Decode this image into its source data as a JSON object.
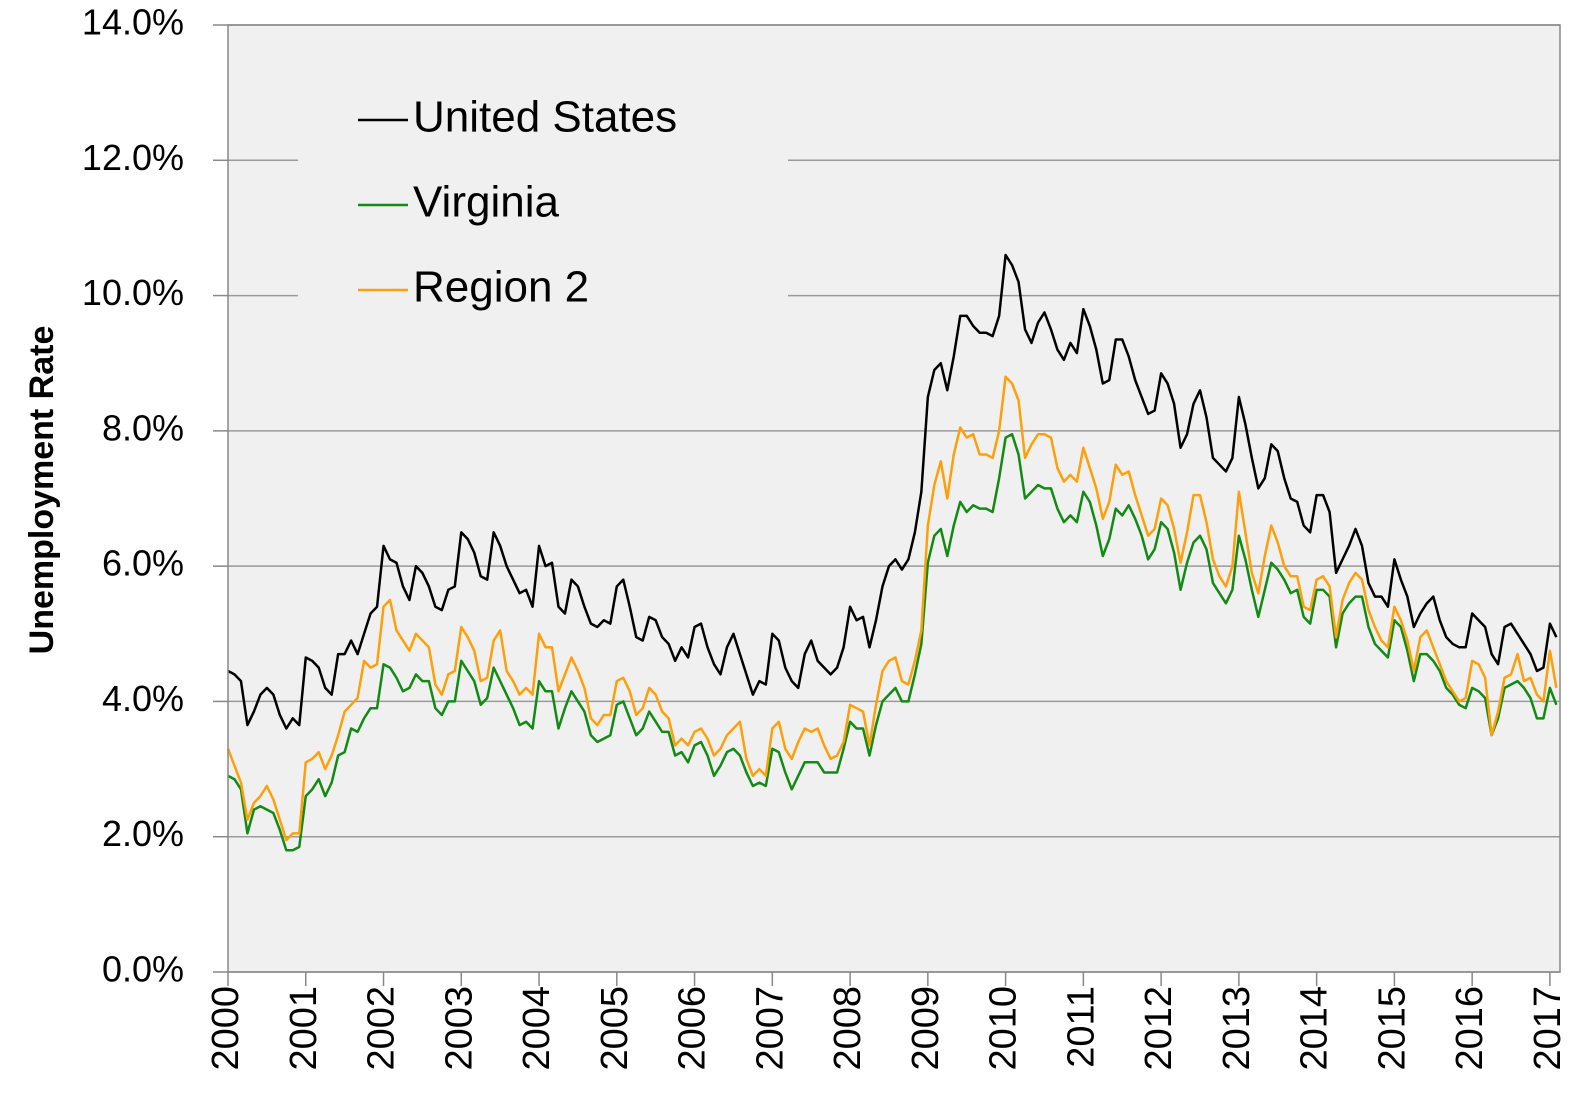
{
  "chart_data": {
    "type": "line",
    "y_label": "Unemployment Rate",
    "categories": [
      "2000",
      null,
      null,
      null,
      null,
      null,
      null,
      null,
      null,
      null,
      null,
      null,
      "2001",
      null,
      null,
      null,
      null,
      null,
      null,
      null,
      null,
      null,
      null,
      null,
      "2002",
      null,
      null,
      null,
      null,
      null,
      null,
      null,
      null,
      null,
      null,
      null,
      "2003",
      null,
      null,
      null,
      null,
      null,
      null,
      null,
      null,
      null,
      null,
      null,
      "2004",
      null,
      null,
      null,
      null,
      null,
      null,
      null,
      null,
      null,
      null,
      null,
      "2005",
      null,
      null,
      null,
      null,
      null,
      null,
      null,
      null,
      null,
      null,
      null,
      "2006",
      null,
      null,
      null,
      null,
      null,
      null,
      null,
      null,
      null,
      null,
      null,
      "2007",
      null,
      null,
      null,
      null,
      null,
      null,
      null,
      null,
      null,
      null,
      null,
      "2008",
      null,
      null,
      null,
      null,
      null,
      null,
      null,
      null,
      null,
      null,
      null,
      "2009",
      null,
      null,
      null,
      null,
      null,
      null,
      null,
      null,
      null,
      null,
      null,
      "2010",
      null,
      null,
      null,
      null,
      null,
      null,
      null,
      null,
      null,
      null,
      null,
      "2011",
      null,
      null,
      null,
      null,
      null,
      null,
      null,
      null,
      null,
      null,
      null,
      "2012",
      null,
      null,
      null,
      null,
      null,
      null,
      null,
      null,
      null,
      null,
      null,
      "2013",
      null,
      null,
      null,
      null,
      null,
      null,
      null,
      null,
      null,
      null,
      null,
      "2014",
      null,
      null,
      null,
      null,
      null,
      null,
      null,
      null,
      null,
      null,
      null,
      "2015",
      null,
      null,
      null,
      null,
      null,
      null,
      null,
      null,
      null,
      null,
      null,
      "2016",
      null,
      null,
      null,
      null,
      null,
      null,
      null,
      null,
      null,
      null,
      null,
      "2017",
      null
    ],
    "series": [
      {
        "name": "United States",
        "color": "#000000",
        "values": [
          4.45,
          4.4,
          4.3,
          3.65,
          3.85,
          4.1,
          4.2,
          4.1,
          3.8,
          3.6,
          3.75,
          3.65,
          4.65,
          4.6,
          4.5,
          4.2,
          4.1,
          4.7,
          4.7,
          4.9,
          4.7,
          5.0,
          5.3,
          5.4,
          6.3,
          6.1,
          6.05,
          5.7,
          5.5,
          6.0,
          5.9,
          5.7,
          5.4,
          5.35,
          5.65,
          5.7,
          6.5,
          6.4,
          6.2,
          5.85,
          5.8,
          6.5,
          6.3,
          6.0,
          5.8,
          5.6,
          5.65,
          5.4,
          6.3,
          6.0,
          6.05,
          5.4,
          5.3,
          5.8,
          5.7,
          5.4,
          5.15,
          5.1,
          5.2,
          5.15,
          5.7,
          5.8,
          5.4,
          4.95,
          4.9,
          5.25,
          5.2,
          4.95,
          4.85,
          4.6,
          4.8,
          4.65,
          5.1,
          5.15,
          4.8,
          4.55,
          4.4,
          4.8,
          5.0,
          4.7,
          4.4,
          4.1,
          4.3,
          4.25,
          5.0,
          4.9,
          4.5,
          4.3,
          4.2,
          4.7,
          4.9,
          4.6,
          4.5,
          4.4,
          4.5,
          4.8,
          5.4,
          5.2,
          5.25,
          4.8,
          5.2,
          5.7,
          6.0,
          6.1,
          5.95,
          6.1,
          6.5,
          7.1,
          8.5,
          8.9,
          9.0,
          8.6,
          9.1,
          9.7,
          9.7,
          9.55,
          9.45,
          9.45,
          9.4,
          9.7,
          10.6,
          10.45,
          10.2,
          9.5,
          9.3,
          9.6,
          9.75,
          9.5,
          9.2,
          9.05,
          9.3,
          9.15,
          9.8,
          9.55,
          9.2,
          8.7,
          8.75,
          9.35,
          9.35,
          9.1,
          8.75,
          8.5,
          8.25,
          8.3,
          8.85,
          8.7,
          8.4,
          7.75,
          7.95,
          8.4,
          8.6,
          8.2,
          7.6,
          7.5,
          7.4,
          7.6,
          8.5,
          8.1,
          7.6,
          7.15,
          7.3,
          7.8,
          7.7,
          7.3,
          7.0,
          6.95,
          6.6,
          6.5,
          7.05,
          7.05,
          6.8,
          5.9,
          6.1,
          6.3,
          6.55,
          6.3,
          5.75,
          5.55,
          5.55,
          5.4,
          6.1,
          5.8,
          5.55,
          5.1,
          5.3,
          5.45,
          5.55,
          5.2,
          4.95,
          4.85,
          4.8,
          4.8,
          5.3,
          5.2,
          5.1,
          4.7,
          4.55,
          5.1,
          5.15,
          5.0,
          4.85,
          4.7,
          4.45,
          4.5,
          5.15,
          4.95
        ]
      },
      {
        "name": "Virginia",
        "color": "#138a13",
        "values": [
          2.9,
          2.85,
          2.7,
          2.05,
          2.4,
          2.45,
          2.4,
          2.35,
          2.1,
          1.8,
          1.8,
          1.85,
          2.6,
          2.7,
          2.85,
          2.6,
          2.8,
          3.2,
          3.25,
          3.6,
          3.55,
          3.75,
          3.9,
          3.9,
          4.55,
          4.5,
          4.35,
          4.15,
          4.2,
          4.4,
          4.3,
          4.3,
          3.9,
          3.8,
          4.0,
          4.0,
          4.6,
          4.45,
          4.3,
          3.95,
          4.05,
          4.5,
          4.3,
          4.1,
          3.9,
          3.65,
          3.7,
          3.6,
          4.3,
          4.15,
          4.15,
          3.6,
          3.9,
          4.15,
          4.0,
          3.85,
          3.5,
          3.4,
          3.45,
          3.5,
          3.95,
          4.0,
          3.75,
          3.5,
          3.6,
          3.85,
          3.7,
          3.55,
          3.55,
          3.2,
          3.25,
          3.1,
          3.35,
          3.4,
          3.2,
          2.9,
          3.05,
          3.25,
          3.3,
          3.2,
          2.95,
          2.75,
          2.8,
          2.75,
          3.3,
          3.25,
          2.95,
          2.7,
          2.9,
          3.1,
          3.1,
          3.1,
          2.95,
          2.95,
          2.95,
          3.3,
          3.7,
          3.6,
          3.6,
          3.2,
          3.65,
          4.0,
          4.1,
          4.2,
          4.0,
          4.0,
          4.4,
          4.85,
          6.05,
          6.45,
          6.55,
          6.15,
          6.6,
          6.95,
          6.8,
          6.9,
          6.85,
          6.85,
          6.8,
          7.3,
          7.9,
          7.95,
          7.65,
          7.0,
          7.1,
          7.2,
          7.15,
          7.15,
          6.85,
          6.65,
          6.75,
          6.65,
          7.1,
          6.95,
          6.6,
          6.15,
          6.4,
          6.85,
          6.75,
          6.9,
          6.7,
          6.45,
          6.1,
          6.25,
          6.65,
          6.55,
          6.2,
          5.65,
          6.05,
          6.35,
          6.45,
          6.25,
          5.75,
          5.6,
          5.45,
          5.65,
          6.45,
          6.1,
          5.65,
          5.25,
          5.65,
          6.05,
          5.95,
          5.8,
          5.6,
          5.65,
          5.25,
          5.15,
          5.65,
          5.65,
          5.55,
          4.8,
          5.3,
          5.45,
          5.55,
          5.55,
          5.1,
          4.85,
          4.75,
          4.65,
          5.2,
          5.1,
          4.75,
          4.3,
          4.7,
          4.7,
          4.6,
          4.45,
          4.2,
          4.1,
          3.95,
          3.9,
          4.2,
          4.15,
          4.05,
          3.5,
          3.75,
          4.2,
          4.25,
          4.3,
          4.2,
          4.05,
          3.75,
          3.75,
          4.2,
          3.95
        ]
      },
      {
        "name": "Region 2",
        "color": "#ffa00a",
        "values": [
          3.3,
          3.05,
          2.8,
          2.25,
          2.5,
          2.6,
          2.75,
          2.55,
          2.25,
          1.95,
          2.05,
          2.05,
          3.1,
          3.15,
          3.25,
          3.0,
          3.2,
          3.5,
          3.85,
          3.95,
          4.05,
          4.6,
          4.5,
          4.55,
          5.4,
          5.5,
          5.05,
          4.9,
          4.75,
          5.0,
          4.9,
          4.8,
          4.25,
          4.1,
          4.4,
          4.45,
          5.1,
          4.95,
          4.75,
          4.3,
          4.35,
          4.9,
          5.05,
          4.45,
          4.3,
          4.1,
          4.2,
          4.1,
          5.0,
          4.8,
          4.8,
          4.15,
          4.4,
          4.65,
          4.45,
          4.2,
          3.75,
          3.65,
          3.8,
          3.8,
          4.3,
          4.35,
          4.15,
          3.8,
          3.9,
          4.2,
          4.1,
          3.85,
          3.75,
          3.35,
          3.45,
          3.35,
          3.55,
          3.6,
          3.45,
          3.2,
          3.3,
          3.5,
          3.6,
          3.7,
          3.15,
          2.9,
          3.0,
          2.9,
          3.6,
          3.7,
          3.3,
          3.15,
          3.4,
          3.6,
          3.55,
          3.6,
          3.35,
          3.15,
          3.2,
          3.4,
          3.95,
          3.9,
          3.85,
          3.35,
          3.95,
          4.45,
          4.6,
          4.65,
          4.3,
          4.25,
          4.6,
          5.05,
          6.6,
          7.2,
          7.55,
          7.0,
          7.65,
          8.05,
          7.9,
          7.95,
          7.65,
          7.65,
          7.6,
          8.0,
          8.8,
          8.7,
          8.45,
          7.6,
          7.8,
          7.95,
          7.95,
          7.9,
          7.45,
          7.25,
          7.35,
          7.25,
          7.75,
          7.45,
          7.15,
          6.7,
          6.95,
          7.5,
          7.35,
          7.4,
          7.05,
          6.75,
          6.45,
          6.55,
          7.0,
          6.9,
          6.55,
          6.05,
          6.5,
          7.05,
          7.05,
          6.65,
          6.1,
          5.85,
          5.7,
          6.0,
          7.1,
          6.5,
          5.9,
          5.6,
          6.15,
          6.6,
          6.35,
          6.0,
          5.85,
          5.85,
          5.4,
          5.35,
          5.8,
          5.85,
          5.7,
          4.95,
          5.5,
          5.75,
          5.9,
          5.8,
          5.35,
          5.1,
          4.9,
          4.8,
          5.4,
          5.2,
          4.9,
          4.45,
          4.95,
          5.05,
          4.8,
          4.55,
          4.3,
          4.15,
          4.0,
          4.05,
          4.6,
          4.55,
          4.35,
          3.5,
          3.85,
          4.35,
          4.4,
          4.7,
          4.3,
          4.35,
          4.1,
          4.0,
          4.75,
          4.2
        ]
      }
    ],
    "ylim": [
      0,
      14
    ],
    "yticks": [
      {
        "value": 0,
        "label": "0.0%"
      },
      {
        "value": 2,
        "label": "2.0%"
      },
      {
        "value": 4,
        "label": "4.0%"
      },
      {
        "value": 6,
        "label": "6.0%"
      },
      {
        "value": 8,
        "label": "8.0%"
      },
      {
        "value": 10,
        "label": "10.0%"
      },
      {
        "value": 12,
        "label": "12.0%"
      },
      {
        "value": 14,
        "label": "14.0%"
      }
    ],
    "grid": true,
    "legend": "upper left"
  }
}
